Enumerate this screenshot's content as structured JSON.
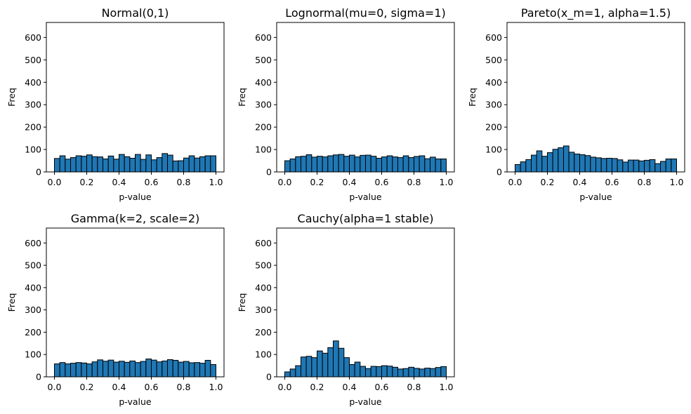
{
  "chart_data": [
    {
      "type": "bar",
      "title": "Normal(0,1)",
      "xlabel": "p-value",
      "ylabel": "Freq",
      "xlim": [
        -0.05,
        1.05
      ],
      "ylim": [
        0,
        667
      ],
      "xticks": [
        0.0,
        0.2,
        0.4,
        0.6,
        0.8,
        1.0
      ],
      "xtick_labels": [
        "0.0",
        "0.2",
        "0.4",
        "0.6",
        "0.8",
        "1.0"
      ],
      "yticks": [
        0,
        100,
        200,
        300,
        400,
        500,
        600
      ],
      "ytick_labels": [
        "0",
        "100",
        "200",
        "300",
        "400",
        "500",
        "600"
      ],
      "bin_edges": [
        0.0,
        1.0
      ],
      "bins": 30,
      "values": [
        60,
        72,
        57,
        64,
        72,
        70,
        76,
        68,
        67,
        58,
        71,
        57,
        78,
        68,
        61,
        78,
        56,
        76,
        54,
        64,
        82,
        75,
        49,
        50,
        62,
        72,
        62,
        68,
        72,
        72
      ]
    },
    {
      "type": "bar",
      "title": "Lognormal(mu=0, sigma=1)",
      "xlabel": "p-value",
      "ylabel": "Freq",
      "xlim": [
        -0.05,
        1.05
      ],
      "ylim": [
        0,
        667
      ],
      "xticks": [
        0.0,
        0.2,
        0.4,
        0.6,
        0.8,
        1.0
      ],
      "xtick_labels": [
        "0.0",
        "0.2",
        "0.4",
        "0.6",
        "0.8",
        "1.0"
      ],
      "yticks": [
        0,
        100,
        200,
        300,
        400,
        500,
        600
      ],
      "ytick_labels": [
        "0",
        "100",
        "200",
        "300",
        "400",
        "500",
        "600"
      ],
      "bin_edges": [
        0.0,
        1.0
      ],
      "bins": 30,
      "values": [
        50,
        58,
        68,
        70,
        77,
        66,
        70,
        67,
        72,
        76,
        78,
        70,
        75,
        67,
        74,
        75,
        70,
        61,
        67,
        72,
        67,
        64,
        72,
        64,
        69,
        72,
        59,
        66,
        58,
        58
      ]
    },
    {
      "type": "bar",
      "title": "Pareto(x_m=1, alpha=1.5)",
      "xlabel": "p-value",
      "ylabel": "Freq",
      "xlim": [
        -0.05,
        1.05
      ],
      "ylim": [
        0,
        667
      ],
      "xticks": [
        0.0,
        0.2,
        0.4,
        0.6,
        0.8,
        1.0
      ],
      "xtick_labels": [
        "0.0",
        "0.2",
        "0.4",
        "0.6",
        "0.8",
        "1.0"
      ],
      "yticks": [
        0,
        100,
        200,
        300,
        400,
        500,
        600
      ],
      "ytick_labels": [
        "0",
        "100",
        "200",
        "300",
        "400",
        "500",
        "600"
      ],
      "bin_edges": [
        0.0,
        1.0
      ],
      "bins": 30,
      "values": [
        33,
        45,
        55,
        75,
        94,
        70,
        86,
        101,
        108,
        116,
        88,
        80,
        77,
        73,
        66,
        63,
        60,
        61,
        60,
        54,
        44,
        53,
        53,
        49,
        52,
        55,
        37,
        47,
        58,
        58
      ]
    },
    {
      "type": "bar",
      "title": "Gamma(k=2, scale=2)",
      "xlabel": "p-value",
      "ylabel": "Freq",
      "xlim": [
        -0.05,
        1.05
      ],
      "ylim": [
        0,
        667
      ],
      "xticks": [
        0.0,
        0.2,
        0.4,
        0.6,
        0.8,
        1.0
      ],
      "xtick_labels": [
        "0.0",
        "0.2",
        "0.4",
        "0.6",
        "0.8",
        "1.0"
      ],
      "yticks": [
        0,
        100,
        200,
        300,
        400,
        500,
        600
      ],
      "ytick_labels": [
        "0",
        "100",
        "200",
        "300",
        "400",
        "500",
        "600"
      ],
      "bin_edges": [
        0.0,
        1.0
      ],
      "bins": 30,
      "values": [
        58,
        64,
        58,
        61,
        64,
        62,
        58,
        67,
        76,
        70,
        75,
        66,
        70,
        65,
        71,
        64,
        69,
        80,
        75,
        67,
        71,
        77,
        74,
        66,
        69,
        63,
        64,
        61,
        74,
        55
      ]
    },
    {
      "type": "bar",
      "title": "Cauchy(alpha=1 stable)",
      "xlabel": "p-value",
      "ylabel": "Freq",
      "xlim": [
        -0.05,
        1.05
      ],
      "ylim": [
        0,
        667
      ],
      "xticks": [
        0.0,
        0.2,
        0.4,
        0.6,
        0.8,
        1.0
      ],
      "xtick_labels": [
        "0.0",
        "0.2",
        "0.4",
        "0.6",
        "0.8",
        "1.0"
      ],
      "yticks": [
        0,
        100,
        200,
        300,
        400,
        500,
        600
      ],
      "ytick_labels": [
        "0",
        "100",
        "200",
        "300",
        "400",
        "500",
        "600"
      ],
      "bin_edges": [
        0.0,
        1.0
      ],
      "bins": 30,
      "values": [
        22,
        35,
        50,
        89,
        92,
        86,
        116,
        106,
        131,
        161,
        128,
        86,
        55,
        66,
        47,
        37,
        47,
        46,
        50,
        48,
        43,
        35,
        37,
        43,
        38,
        35,
        39,
        37,
        42,
        46
      ]
    }
  ]
}
